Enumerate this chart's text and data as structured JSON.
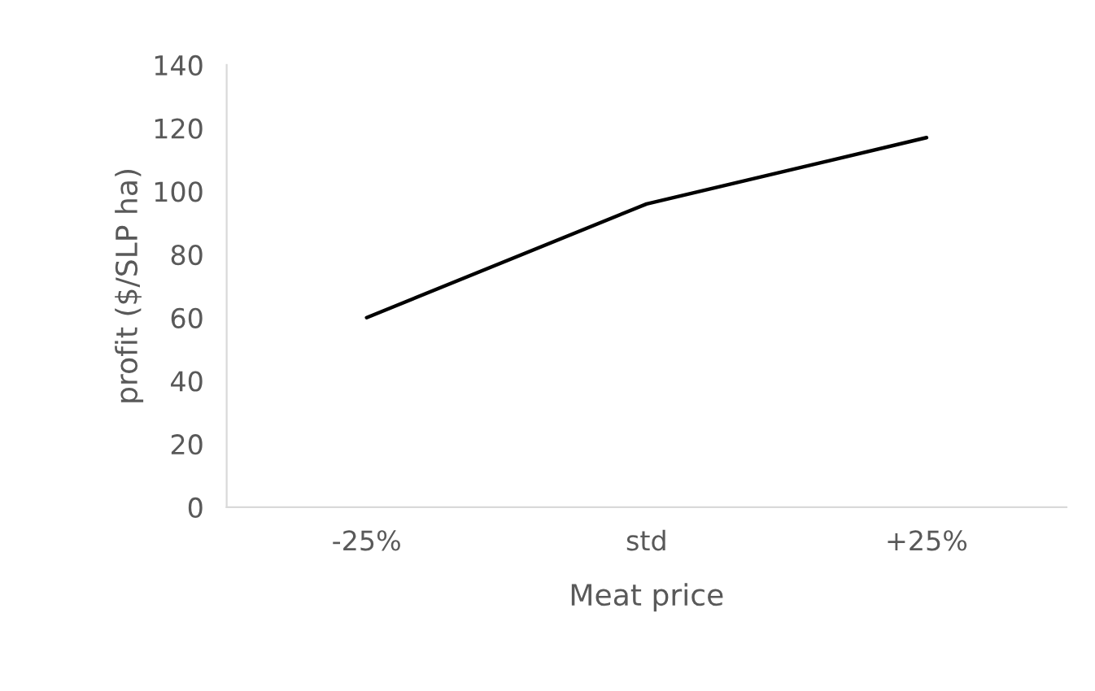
{
  "chart_data": {
    "type": "line",
    "xlabel": "Meat price",
    "ylabel": "profit ($/SLP ha)",
    "categories": [
      "-25%",
      "std",
      "+25%"
    ],
    "series": [
      {
        "color": "#000000",
        "values": [
          60,
          96,
          117
        ]
      }
    ],
    "ylim": [
      0,
      140
    ],
    "yticks": [
      0,
      20,
      40,
      60,
      80,
      100,
      120,
      140
    ],
    "grid": false,
    "legend": false,
    "marker": "none",
    "line_style": "solid"
  }
}
